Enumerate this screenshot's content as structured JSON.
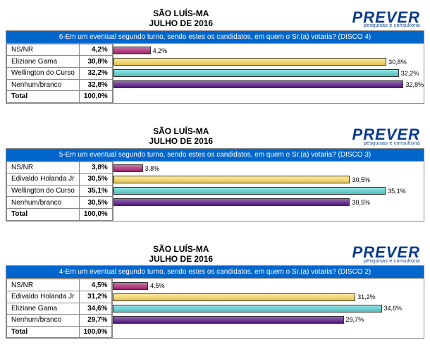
{
  "header": {
    "location": "SÃO LUÍS-MA",
    "date": "JULHO DE 2016",
    "logo_main": "PREVER",
    "logo_sub": "pesquisas e consultoria"
  },
  "panels": [
    {
      "question": "6-Em um eventual segundo turno, sendo estes os candidatos, em quem o Sr.(a) votaria? (DISCO 4)",
      "rows": [
        {
          "label": "NS/NR",
          "pct": 4.2,
          "pct_text": "4,2%",
          "color": "#b22876"
        },
        {
          "label": "Eliziane Gama",
          "pct": 30.8,
          "pct_text": "30,8%",
          "color": "#ffe066"
        },
        {
          "label": "Wellington do Curso",
          "pct": 32.2,
          "pct_text": "32,2%",
          "color": "#5cd6d6"
        },
        {
          "label": "Nenhum/branco",
          "pct": 32.8,
          "pct_text": "32,8%",
          "color": "#5a1a8a"
        }
      ],
      "total_label": "Total",
      "total_text": "100,0%",
      "xmax": 35
    },
    {
      "question": "5-Em um eventual segundo turno, sendo estes os candidatos, em quem o Sr.(a) votaria? (DISCO 3)",
      "rows": [
        {
          "label": "NS/NR",
          "pct": 3.8,
          "pct_text": "3,8%",
          "color": "#b22876"
        },
        {
          "label": "Edivaldo Holanda Jr",
          "pct": 30.5,
          "pct_text": "30,5%",
          "color": "#ffe066"
        },
        {
          "label": "Wellington do Curso",
          "pct": 35.1,
          "pct_text": "35,1%",
          "color": "#5cd6d6"
        },
        {
          "label": "Nenhum/branco",
          "pct": 30.5,
          "pct_text": "30,5%",
          "color": "#5a1a8a"
        }
      ],
      "total_label": "Total",
      "total_text": "100,0%",
      "xmax": 40
    },
    {
      "question": "4-Em um eventual segundo turno, sendo estes os candidatos, em quem o Sr.(a) votaria? (DISCO 2)",
      "rows": [
        {
          "label": "NS/NR",
          "pct": 4.5,
          "pct_text": "4,5%",
          "color": "#b22876"
        },
        {
          "label": "Edivaldo Holanda Jr",
          "pct": 31.2,
          "pct_text": "31,2%",
          "color": "#ffe066"
        },
        {
          "label": "Eliziane Gama",
          "pct": 34.6,
          "pct_text": "34,6%",
          "color": "#5cd6d6"
        },
        {
          "label": "Nenhum/branco",
          "pct": 29.7,
          "pct_text": "29,7%",
          "color": "#5a1a8a"
        }
      ],
      "total_label": "Total",
      "total_text": "100,0%",
      "xmax": 40
    }
  ]
}
